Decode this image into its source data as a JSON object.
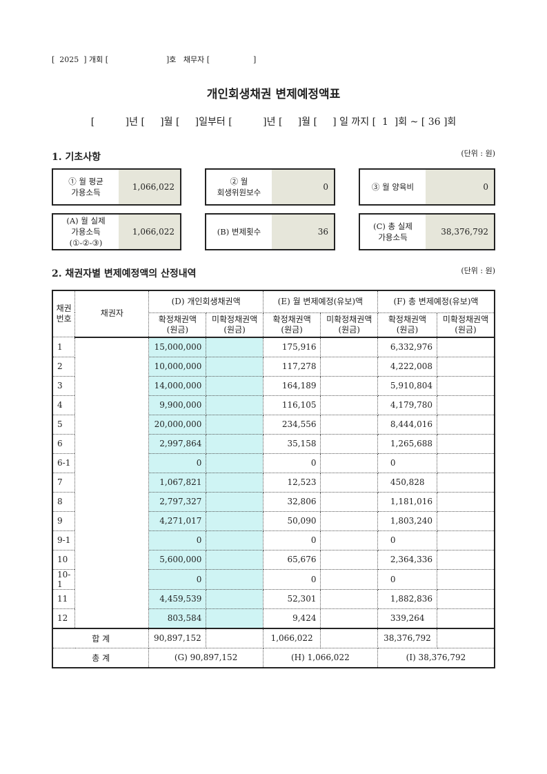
{
  "header": {
    "line": "[  2025  ] 개회 [                        ]호   채무자 [                  ]",
    "title": "개인회생채권 변제예정액표",
    "period": "[          ]년 [     ]월 [     ]일부터 [          ]년 [     ]월 [     ] 일 까지 [  1  ]회 ~ [ 36 ]회"
  },
  "section1": {
    "title": "1. 기초사항",
    "unit": "(단위 : 원)",
    "boxes": [
      {
        "label": "① 월 평균\n가용소득",
        "value": "1,066,022"
      },
      {
        "label": "② 월\n회생위원보수",
        "value": "0"
      },
      {
        "label": "③ 월 양육비",
        "value": "0"
      },
      {
        "label": "(A) 월 실제\n가용소득\n(①-②-③)",
        "value": "1,066,022"
      },
      {
        "label": "(B) 변제횟수",
        "value": "36"
      },
      {
        "label": "(C) 총 실제\n가용소득",
        "value": "38,376,792"
      }
    ]
  },
  "section2": {
    "title": "2. 채권자별 변제예정액의 산정내역",
    "unit": "(단위 : 원)"
  },
  "table": {
    "h_no": "채권\n번호",
    "h_creditor": "채권자",
    "h_d": "(D) 개인회생채권액",
    "h_e": "(E) 월 변제예정(유보)액",
    "h_f": "(F) 총 변제예정(유보)액",
    "h_conf": "확정채권액\n(원금)",
    "h_unconf": "미확정채권액\n(원금)",
    "rows": [
      [
        "1",
        "15,000,000",
        "175,916",
        "6,332,976"
      ],
      [
        "2",
        "10,000,000",
        "117,278",
        "4,222,008"
      ],
      [
        "3",
        "14,000,000",
        "164,189",
        "5,910,804"
      ],
      [
        "4",
        "9,900,000",
        "116,105",
        "4,179,780"
      ],
      [
        "5",
        "20,000,000",
        "234,556",
        "8,444,016"
      ],
      [
        "6",
        "2,997,864",
        "35,158",
        "1,265,688"
      ],
      [
        "6-1",
        "0",
        "0",
        "0"
      ],
      [
        "7",
        "1,067,821",
        "12,523",
        "450,828"
      ],
      [
        "8",
        "2,797,327",
        "32,806",
        "1,181,016"
      ],
      [
        "9",
        "4,271,017",
        "50,090",
        "1,803,240"
      ],
      [
        "9-1",
        "0",
        "0",
        "0"
      ],
      [
        "10",
        "5,600,000",
        "65,676",
        "2,364,336"
      ],
      [
        "10-1",
        "0",
        "0",
        "0"
      ],
      [
        "11",
        "4,459,539",
        "52,301",
        "1,882,836"
      ],
      [
        "12",
        "803,584",
        "9,424",
        "339,264"
      ]
    ],
    "sum": {
      "label": "합 계",
      "d": "90,897,152",
      "e": "1,066,022",
      "f": "38,376,792"
    },
    "total": {
      "label": "총 계",
      "g": "(G) 90,897,152",
      "h": "(H) 1,066,022",
      "i": "(I) 38,376,792"
    }
  },
  "colors": {
    "gray_value": "#e6e6da",
    "cyan_cell": "#cff4f4"
  }
}
